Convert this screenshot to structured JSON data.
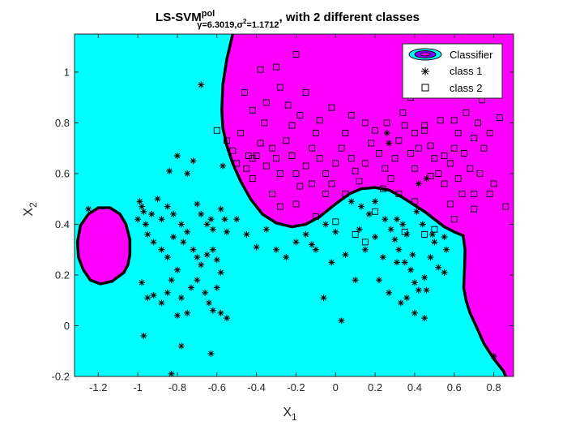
{
  "chart_data": {
    "type": "scatter",
    "title": {
      "main": "LS-SVM",
      "sup": "pol",
      "sub": "γ=6.3019,σ",
      "sub_sup": "2",
      "sub_end": "=1.1712",
      "tail": ", with 2 different classes"
    },
    "xlabel": {
      "main": "X",
      "sub": "1"
    },
    "ylabel": {
      "main": "X",
      "sub": "2"
    },
    "xlim": [
      -1.32,
      0.9
    ],
    "ylim": [
      -0.2,
      1.15
    ],
    "xticks": [
      -1.2,
      -1,
      -0.8,
      -0.6,
      -0.4,
      -0.2,
      0,
      0.2,
      0.4,
      0.6,
      0.8
    ],
    "xtick_labels": [
      "-1.2",
      "-1",
      "-0.8",
      "-0.6",
      "-0.4",
      "-0.2",
      "0",
      "0.2",
      "0.4",
      "0.6",
      "0.8"
    ],
    "yticks": [
      -0.2,
      0,
      0.2,
      0.4,
      0.6,
      0.8,
      1
    ],
    "ytick_labels": [
      "-0.2",
      "0",
      "0.2",
      "0.4",
      "0.6",
      "0.8",
      "1"
    ],
    "grid": false,
    "legend_position": "top-right",
    "colors": {
      "class1_region": "#00ffff",
      "class2_region": "#ff00ff",
      "boundary": "#000000",
      "markers": "#000000"
    },
    "legend": [
      "Classifier",
      "class 1",
      "class 2"
    ],
    "boundary": {
      "main": [
        [
          -0.52,
          1.15
        ],
        [
          -0.55,
          1.05
        ],
        [
          -0.57,
          0.95
        ],
        [
          -0.575,
          0.85
        ],
        [
          -0.57,
          0.78
        ],
        [
          -0.55,
          0.71
        ],
        [
          -0.52,
          0.64
        ],
        [
          -0.48,
          0.57
        ],
        [
          -0.43,
          0.5
        ],
        [
          -0.37,
          0.44
        ],
        [
          -0.3,
          0.405
        ],
        [
          -0.22,
          0.39
        ],
        [
          -0.15,
          0.4
        ],
        [
          -0.08,
          0.43
        ],
        [
          0.0,
          0.48
        ],
        [
          0.07,
          0.52
        ],
        [
          0.13,
          0.54
        ],
        [
          0.2,
          0.545
        ],
        [
          0.27,
          0.535
        ],
        [
          0.33,
          0.51
        ],
        [
          0.39,
          0.48
        ],
        [
          0.45,
          0.45
        ],
        [
          0.5,
          0.42
        ],
        [
          0.55,
          0.39
        ],
        [
          0.6,
          0.37
        ],
        [
          0.645,
          0.355
        ],
        [
          0.655,
          0.3
        ],
        [
          0.652,
          0.22
        ],
        [
          0.648,
          0.15
        ],
        [
          0.66,
          0.1
        ],
        [
          0.68,
          0.05
        ],
        [
          0.71,
          0.0
        ],
        [
          0.75,
          -0.07
        ],
        [
          0.8,
          -0.13
        ],
        [
          0.85,
          -0.18
        ],
        [
          0.86,
          -0.2
        ]
      ],
      "island": [
        [
          -1.07,
          0.21
        ],
        [
          -1.13,
          0.175
        ],
        [
          -1.19,
          0.165
        ],
        [
          -1.24,
          0.18
        ],
        [
          -1.275,
          0.22
        ],
        [
          -1.3,
          0.27
        ],
        [
          -1.305,
          0.33
        ],
        [
          -1.29,
          0.395
        ],
        [
          -1.25,
          0.44
        ],
        [
          -1.2,
          0.465
        ],
        [
          -1.14,
          0.465
        ],
        [
          -1.09,
          0.44
        ],
        [
          -1.06,
          0.4
        ],
        [
          -1.04,
          0.34
        ],
        [
          -1.04,
          0.28
        ],
        [
          -1.05,
          0.24
        ]
      ]
    },
    "series": [
      {
        "name": "class 1",
        "marker": "asterisk",
        "points": [
          [
            -1.25,
            0.46
          ],
          [
            -0.99,
            0.49
          ],
          [
            -0.98,
            0.47
          ],
          [
            -0.97,
            0.45
          ],
          [
            -1.0,
            0.42
          ],
          [
            -0.96,
            0.4
          ],
          [
            -0.93,
            0.44
          ],
          [
            -0.9,
            0.5
          ],
          [
            -0.88,
            0.42
          ],
          [
            -0.85,
            0.47
          ],
          [
            -0.82,
            0.44
          ],
          [
            -0.8,
            0.67
          ],
          [
            -0.72,
            0.65
          ],
          [
            -0.7,
            0.48
          ],
          [
            -0.68,
            0.44
          ],
          [
            -0.65,
            0.4
          ],
          [
            -0.63,
            0.42
          ],
          [
            -0.62,
            0.38
          ],
          [
            -0.58,
            0.46
          ],
          [
            -0.56,
            0.42
          ],
          [
            -0.84,
            0.61
          ],
          [
            -0.95,
            0.36
          ],
          [
            -0.92,
            0.33
          ],
          [
            -0.88,
            0.3
          ],
          [
            -0.85,
            0.27
          ],
          [
            -0.82,
            0.35
          ],
          [
            -0.78,
            0.4
          ],
          [
            -0.75,
            0.37
          ],
          [
            -0.72,
            0.3
          ],
          [
            -0.7,
            0.27
          ],
          [
            -0.68,
            0.24
          ],
          [
            -0.65,
            0.28
          ],
          [
            -0.62,
            0.3
          ],
          [
            -0.6,
            0.26
          ],
          [
            -0.58,
            0.21
          ],
          [
            -0.55,
            0.37
          ],
          [
            -0.75,
            0.6
          ],
          [
            -0.77,
            0.33
          ],
          [
            -0.8,
            0.22
          ],
          [
            -0.83,
            0.18
          ],
          [
            -0.85,
            0.13
          ],
          [
            -0.88,
            0.09
          ],
          [
            -0.92,
            0.12
          ],
          [
            -0.95,
            0.11
          ],
          [
            -0.98,
            0.17
          ],
          [
            -0.97,
            -0.04
          ],
          [
            -0.78,
            -0.08
          ],
          [
            -0.63,
            -0.11
          ],
          [
            -0.83,
            -0.19
          ],
          [
            -0.73,
            0.15
          ],
          [
            -0.7,
            0.18
          ],
          [
            -0.66,
            0.13
          ],
          [
            -0.64,
            0.09
          ],
          [
            -0.62,
            0.06
          ],
          [
            -0.6,
            0.15
          ],
          [
            -0.58,
            0.05
          ],
          [
            -0.55,
            0.03
          ],
          [
            -0.75,
            0.05
          ],
          [
            -0.78,
            0.11
          ],
          [
            -0.8,
            0.04
          ],
          [
            -0.68,
            0.95
          ],
          [
            -0.57,
            0.63
          ],
          [
            -0.5,
            0.42
          ],
          [
            -0.45,
            0.36
          ],
          [
            -0.4,
            0.31
          ],
          [
            -0.35,
            0.38
          ],
          [
            -0.3,
            0.3
          ],
          [
            -0.25,
            0.27
          ],
          [
            -0.2,
            0.33
          ],
          [
            -0.15,
            0.36
          ],
          [
            -0.1,
            0.3
          ],
          [
            -0.05,
            0.4
          ],
          [
            0.0,
            0.37
          ],
          [
            0.05,
            0.28
          ],
          [
            0.1,
            0.18
          ],
          [
            0.15,
            0.3
          ],
          [
            0.2,
            0.35
          ],
          [
            0.25,
            0.42
          ],
          [
            0.28,
            0.38
          ],
          [
            0.3,
            0.34
          ],
          [
            0.32,
            0.3
          ],
          [
            0.35,
            0.25
          ],
          [
            0.38,
            0.22
          ],
          [
            0.4,
            0.17
          ],
          [
            0.42,
            0.14
          ],
          [
            0.45,
            0.19
          ],
          [
            0.48,
            0.27
          ],
          [
            0.5,
            0.33
          ],
          [
            0.52,
            0.23
          ],
          [
            0.55,
            0.21
          ],
          [
            0.22,
            0.18
          ],
          [
            0.27,
            0.13
          ],
          [
            0.33,
            0.09
          ],
          [
            0.36,
            0.11
          ],
          [
            0.4,
            0.05
          ],
          [
            0.45,
            0.03
          ],
          [
            0.46,
            0.58
          ],
          [
            0.42,
            0.56
          ],
          [
            0.27,
            0.72
          ],
          [
            0.26,
            0.76
          ],
          [
            0.2,
            0.49
          ],
          [
            0.17,
            0.44
          ],
          [
            0.13,
            0.47
          ],
          [
            0.08,
            0.49
          ],
          [
            0.03,
            0.02
          ],
          [
            0.8,
            -0.12
          ],
          [
            0.34,
            0.4
          ],
          [
            0.31,
            0.42
          ],
          [
            0.36,
            0.36
          ],
          [
            0.41,
            0.45
          ],
          [
            0.44,
            0.4
          ],
          [
            0.49,
            0.36
          ],
          [
            0.55,
            0.35
          ],
          [
            0.56,
            0.3
          ],
          [
            -0.06,
            0.11
          ],
          [
            0.24,
            0.27
          ],
          [
            0.31,
            0.25
          ],
          [
            0.39,
            0.28
          ],
          [
            0.46,
            0.14
          ],
          [
            0.12,
            0.38
          ],
          [
            -0.12,
            0.32
          ],
          [
            -0.02,
            0.25
          ]
        ]
      },
      {
        "name": "class 2",
        "marker": "square",
        "points": [
          [
            -0.6,
            0.77
          ],
          [
            -0.55,
            0.73
          ],
          [
            -0.52,
            0.69
          ],
          [
            -0.48,
            0.76
          ],
          [
            -0.5,
            0.64
          ],
          [
            -0.45,
            0.62
          ],
          [
            -0.42,
            0.58
          ],
          [
            -0.4,
            0.67
          ],
          [
            -0.38,
            0.72
          ],
          [
            -0.35,
            0.63
          ],
          [
            -0.32,
            0.7
          ],
          [
            -0.3,
            0.66
          ],
          [
            -0.28,
            0.6
          ],
          [
            -0.25,
            0.73
          ],
          [
            -0.22,
            0.67
          ],
          [
            -0.2,
            0.6
          ],
          [
            -0.18,
            0.55
          ],
          [
            -0.15,
            0.63
          ],
          [
            -0.12,
            0.7
          ],
          [
            -0.1,
            0.76
          ],
          [
            -0.08,
            0.66
          ],
          [
            -0.05,
            0.6
          ],
          [
            -0.02,
            0.56
          ],
          [
            0.0,
            0.64
          ],
          [
            0.03,
            0.7
          ],
          [
            0.05,
            0.76
          ],
          [
            0.08,
            0.66
          ],
          [
            0.1,
            0.61
          ],
          [
            0.12,
            0.57
          ],
          [
            0.15,
            0.64
          ],
          [
            0.18,
            0.72
          ],
          [
            0.2,
            0.77
          ],
          [
            0.22,
            0.68
          ],
          [
            0.25,
            0.62
          ],
          [
            0.28,
            0.58
          ],
          [
            0.3,
            0.66
          ],
          [
            0.32,
            0.73
          ],
          [
            0.35,
            0.79
          ],
          [
            0.38,
            0.68
          ],
          [
            0.4,
            0.62
          ],
          [
            0.42,
            0.7
          ],
          [
            0.45,
            0.77
          ],
          [
            0.48,
            0.71
          ],
          [
            0.5,
            0.66
          ],
          [
            0.52,
            0.6
          ],
          [
            0.55,
            0.56
          ],
          [
            0.58,
            0.64
          ],
          [
            0.6,
            0.7
          ],
          [
            0.62,
            0.76
          ],
          [
            0.65,
            0.68
          ],
          [
            0.68,
            0.62
          ],
          [
            0.7,
            0.74
          ],
          [
            0.72,
            0.8
          ],
          [
            0.75,
            0.7
          ],
          [
            0.78,
            0.76
          ],
          [
            0.63,
            0.97
          ],
          [
            0.68,
            0.95
          ],
          [
            0.4,
            0.96
          ],
          [
            0.38,
            0.9
          ],
          [
            -0.38,
            1.01
          ],
          [
            -0.3,
            1.02
          ],
          [
            -0.2,
            1.07
          ],
          [
            -0.15,
            0.92
          ],
          [
            -0.18,
            0.83
          ],
          [
            -0.24,
            0.87
          ],
          [
            -0.28,
            0.94
          ],
          [
            -0.35,
            0.88
          ],
          [
            -0.42,
            0.85
          ],
          [
            -0.46,
            0.92
          ],
          [
            -0.36,
            0.8
          ],
          [
            -0.08,
            0.81
          ],
          [
            -0.02,
            0.86
          ],
          [
            0.08,
            0.83
          ],
          [
            0.15,
            0.8
          ],
          [
            0.26,
            0.8
          ],
          [
            0.34,
            0.84
          ],
          [
            0.45,
            0.79
          ],
          [
            0.53,
            0.81
          ],
          [
            0.6,
            0.81
          ],
          [
            0.66,
            0.84
          ],
          [
            0.74,
            0.89
          ],
          [
            0.83,
            0.82
          ],
          [
            0.86,
            0.47
          ],
          [
            0.8,
            0.56
          ],
          [
            0.73,
            0.6
          ],
          [
            0.64,
            0.52
          ],
          [
            0.58,
            0.48
          ],
          [
            0.6,
            0.42
          ],
          [
            0.7,
            0.46
          ],
          [
            0.78,
            0.52
          ],
          [
            0.35,
            0.37
          ],
          [
            0.45,
            0.36
          ],
          [
            0.5,
            0.38
          ],
          [
            0.4,
            0.49
          ],
          [
            0.2,
            0.45
          ],
          [
            0.1,
            0.36
          ],
          [
            0.0,
            0.41
          ],
          [
            -0.1,
            0.43
          ],
          [
            -0.2,
            0.48
          ],
          [
            -0.28,
            0.47
          ],
          [
            -0.32,
            0.52
          ],
          [
            -0.42,
            0.66
          ],
          [
            0.48,
            0.59
          ],
          [
            -0.22,
            0.79
          ],
          [
            -0.44,
            0.67
          ],
          [
            0.15,
            0.33
          ],
          [
            0.05,
            0.52
          ],
          [
            -0.05,
            0.52
          ],
          [
            0.24,
            0.54
          ],
          [
            0.32,
            0.52
          ],
          [
            0.55,
            0.67
          ],
          [
            0.62,
            0.58
          ],
          [
            0.7,
            0.52
          ],
          [
            0.4,
            0.76
          ],
          [
            -0.12,
            0.56
          ]
        ]
      }
    ]
  }
}
